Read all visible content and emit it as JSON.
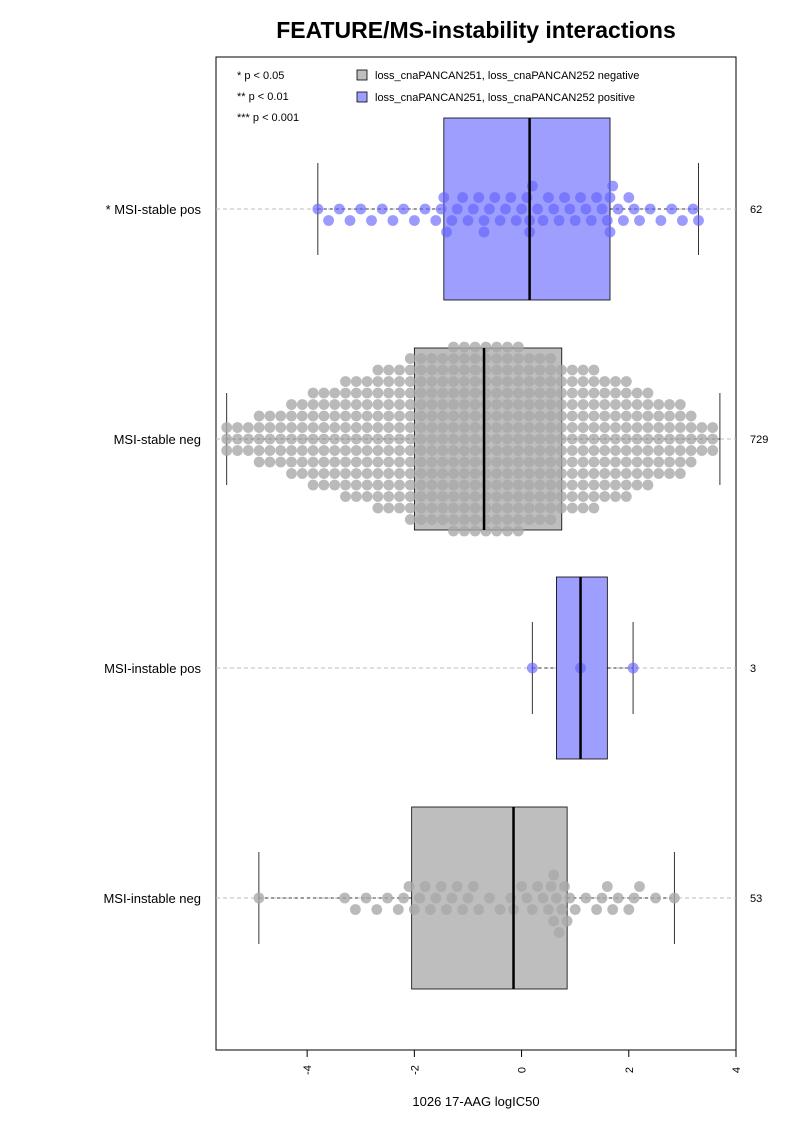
{
  "chart_data": {
    "type": "boxplot-beeswarm",
    "orientation": "horizontal",
    "title": "FEATURE/MS-instability interactions",
    "xlabel": "1026 17-AAG logIC50",
    "xlim": [
      -5.7,
      4.0
    ],
    "xticks": [
      -4,
      -2,
      0,
      2,
      4
    ],
    "significance_legend": [
      "* p < 0.05",
      "** p < 0.01",
      "*** p < 0.001"
    ],
    "legend": [
      {
        "label": "loss_cnaPANCAN251, loss_cnaPANCAN252 negative",
        "color": "#bebebe"
      },
      {
        "label": "loss_cnaPANCAN251, loss_cnaPANCAN252 positive",
        "color": "#9e9eff"
      }
    ],
    "colors": {
      "neg_box": "#bebebe",
      "pos_box": "#9e9eff",
      "neg_point": "#a9a9a9",
      "pos_point": "#6464ff"
    },
    "groups": [
      {
        "label": "* MSI-stable pos",
        "n": "62",
        "status": "pos",
        "stats": {
          "whisker_low": -3.8,
          "q1": -1.45,
          "median": 0.15,
          "q3": 1.65,
          "whisker_high": 3.3
        }
      },
      {
        "label": "MSI-stable neg",
        "n": "729",
        "status": "neg",
        "stats": {
          "whisker_low": -5.5,
          "q1": -2.0,
          "median": -0.7,
          "q3": 0.75,
          "whisker_high": 3.7
        }
      },
      {
        "label": "MSI-instable pos",
        "n": "3",
        "status": "pos",
        "stats": {
          "whisker_low": 0.2,
          "q1": 0.65,
          "median": 1.1,
          "q3": 1.6,
          "whisker_high": 2.08
        }
      },
      {
        "label": "MSI-instable neg",
        "n": "53",
        "status": "neg",
        "stats": {
          "whisker_low": -4.9,
          "q1": -2.05,
          "median": -0.15,
          "q3": 0.85,
          "whisker_high": 2.85
        }
      }
    ],
    "points": [
      {
        "group": 0,
        "values": [
          -3.8,
          -3.6,
          -3.4,
          -3.2,
          -3.0,
          -2.8,
          -2.6,
          -2.4,
          -2.2,
          -2.0,
          -1.8,
          -1.6,
          -1.5,
          -1.4,
          -1.3,
          -1.2,
          -1.1,
          -1.0,
          -0.9,
          -0.8,
          -0.7,
          -0.6,
          -0.5,
          -0.4,
          -0.3,
          -0.2,
          -0.1,
          0.0,
          0.1,
          0.15,
          0.2,
          0.3,
          0.4,
          0.5,
          0.6,
          0.7,
          0.8,
          0.9,
          1.0,
          1.1,
          1.2,
          1.3,
          1.4,
          1.5,
          1.6,
          1.65,
          1.7,
          1.8,
          1.9,
          2.0,
          2.1,
          2.2,
          2.4,
          2.6,
          2.8,
          3.0,
          3.2,
          3.3,
          -1.45,
          0.15,
          1.65,
          -0.7
        ]
      },
      {
        "group": 2,
        "values": [
          0.2,
          1.1,
          2.08
        ]
      },
      {
        "group": 3,
        "values": [
          -4.9,
          -3.3,
          -3.1,
          -2.9,
          -2.7,
          -2.5,
          -2.3,
          -2.2,
          -2.1,
          -2.0,
          -1.9,
          -1.8,
          -1.7,
          -1.6,
          -1.5,
          -1.4,
          -1.3,
          -1.2,
          -1.1,
          -1.0,
          -0.9,
          -0.8,
          -0.6,
          -0.4,
          -0.2,
          0.0,
          0.1,
          0.2,
          0.3,
          0.4,
          0.5,
          0.55,
          0.6,
          0.65,
          0.7,
          0.75,
          0.8,
          0.85,
          0.9,
          1.0,
          1.2,
          1.4,
          1.5,
          1.6,
          1.7,
          1.8,
          2.0,
          2.1,
          2.2,
          2.5,
          2.85,
          -0.15,
          0.6
        ]
      }
    ],
    "dense_group": {
      "group": 1,
      "count": 729,
      "min": -5.5,
      "max": 3.7,
      "center": -0.7
    }
  }
}
